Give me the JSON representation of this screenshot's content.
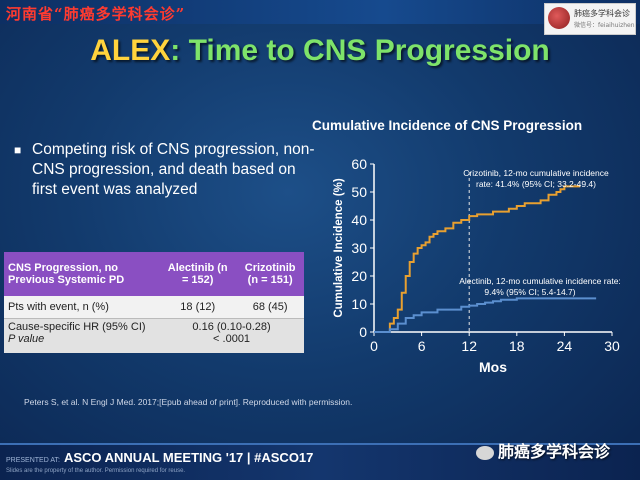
{
  "banner": {
    "text": "河南省“肺癌多学科会诊”"
  },
  "logo": {
    "name": "肺癌多学科会诊",
    "sub": "微信号：feiaihuizhen"
  },
  "title": {
    "prefix": "ALEX",
    "suffix": ": Time to CNS Progression"
  },
  "bullet": {
    "text": "Competing risk of CNS progression, non-CNS progression, and death based on first event was analyzed"
  },
  "table": {
    "header": {
      "col0": "CNS Progression, no Previous Systemic PD",
      "col1": "Alectinib (n = 152)",
      "col2": "Crizotinib (n = 151)"
    },
    "row1": {
      "label": "Pts with event, n (%)",
      "v1": "18 (12)",
      "v2": "68 (45)"
    },
    "row2": {
      "label1": "Cause-specific HR (95% CI)",
      "label2": "P value",
      "v1": "0.16 (0.10-0.28)",
      "v2": "< .0001"
    }
  },
  "chart_title": "Cumulative Incidence of CNS Progression",
  "chart_data": {
    "type": "line",
    "title": "Cumulative Incidence of CNS Progression",
    "xlabel": "Mos",
    "ylabel": "Cumulative Incidence (%)",
    "xlim": [
      0,
      30
    ],
    "ylim": [
      0,
      60
    ],
    "xticks": [
      0,
      6,
      12,
      18,
      24,
      30
    ],
    "yticks": [
      0,
      10,
      20,
      30,
      40,
      50,
      60
    ],
    "reference_line_x": 12,
    "colors": {
      "crizotinib": "#e8a030",
      "alectinib": "#5b8fcf"
    },
    "annotations": [
      "Crizotinib, 12-mo cumulative incidence rate: 41.4% (95% CI; 33.2-49.4)",
      "Alectinib, 12-mo cumulative incidence rate: 9.4% (95% CI; 5.4-14.7)"
    ],
    "series": [
      {
        "name": "Crizotinib",
        "x": [
          0,
          1.5,
          2,
          2.5,
          3,
          3.5,
          4,
          4.5,
          5,
          5.5,
          6,
          6.5,
          7,
          7.5,
          8,
          9,
          10,
          11,
          12,
          13,
          15,
          17,
          18,
          19,
          21,
          22,
          23,
          23.5,
          24,
          25,
          26
        ],
        "y": [
          0,
          0,
          3,
          5,
          8,
          14,
          20,
          25,
          28,
          30,
          31,
          32,
          34,
          35,
          36,
          37,
          39,
          40,
          41.4,
          42,
          43,
          44,
          45,
          46,
          47,
          49,
          50,
          51,
          52,
          52,
          52
        ]
      },
      {
        "name": "Alectinib",
        "x": [
          0,
          2,
          3,
          4,
          5,
          6,
          7,
          8,
          9,
          10,
          11,
          12,
          13,
          14,
          15,
          16,
          18,
          20,
          22,
          24,
          26,
          28
        ],
        "y": [
          0,
          1,
          3,
          5,
          6,
          7,
          7,
          8,
          8,
          8,
          9,
          9.4,
          10,
          10.5,
          11,
          11.5,
          12,
          12,
          12,
          12,
          12,
          12
        ]
      }
    ]
  },
  "reference": "Peters S, et al. N Engl J Med. 2017;[Epub ahead of print]. Reproduced with permission.",
  "footer": {
    "presented": "PRESENTED AT:",
    "main": "ASCO ANNUAL MEETING '17 | #ASCO17",
    "sub": "Slides are the property of the author. Permission required for reuse."
  },
  "wechat": {
    "label": "肺癌多学科会诊"
  }
}
